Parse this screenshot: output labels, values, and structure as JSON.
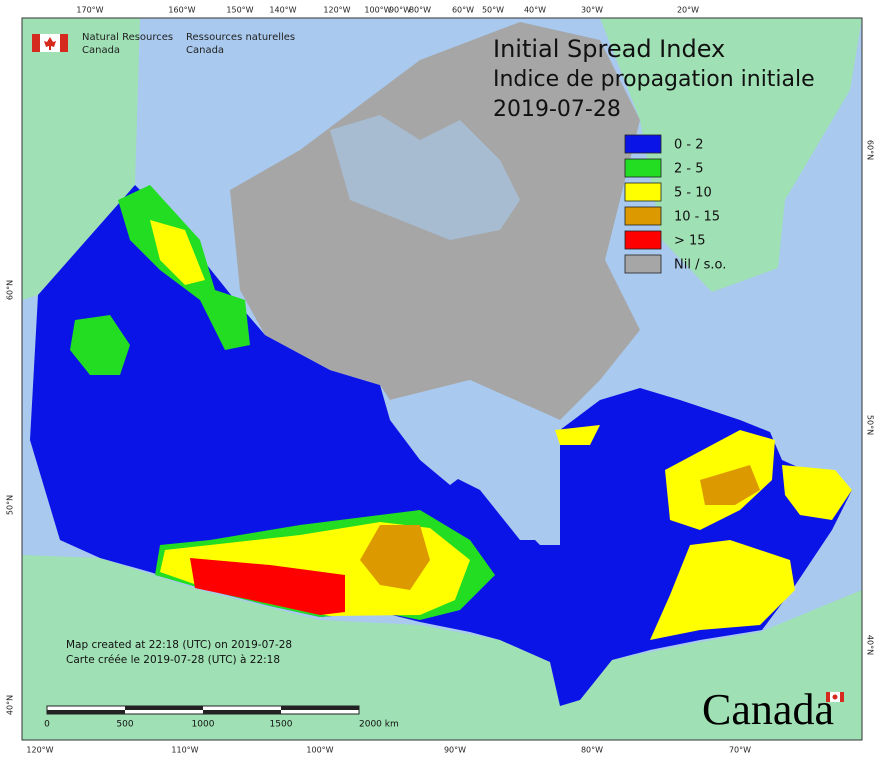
{
  "header": {
    "department_en": [
      "Natural Resources",
      "Canada"
    ],
    "department_fr": [
      "Ressources naturelles",
      "Canada"
    ]
  },
  "title": [
    "Initial Spread Index",
    "Indice de propagation initiale",
    "2019-07-28"
  ],
  "legend": [
    {
      "label": "0 - 2",
      "color": "#0a14e6"
    },
    {
      "label": "2 - 5",
      "color": "#22dd22"
    },
    {
      "label": "5 - 10",
      "color": "#ffff00"
    },
    {
      "label": "10 - 15",
      "color": "#dd9900"
    },
    {
      "label": "> 15",
      "color": "#ff0000"
    },
    {
      "label": "Nil / s.o.",
      "color": "#a6a6a6"
    }
  ],
  "graticule": {
    "top": [
      "170°W",
      "160°W",
      "150°W",
      "140°W",
      "120°W",
      "100°W",
      "90°W",
      "80°W",
      "60°W",
      "50°W",
      "40°W",
      "30°W",
      "20°W"
    ],
    "bottom": [
      "120°W",
      "110°W",
      "100°W",
      "90°W",
      "80°W",
      "70°W"
    ],
    "left": [
      "60°N",
      "50°N",
      "40°N"
    ],
    "right": [
      "60°N",
      "50°N",
      "40°N"
    ]
  },
  "notes": [
    "Map created at 22:18 (UTC) on 2019-07-28",
    "Carte créée le 2019-07-28 (UTC) à 22:18"
  ],
  "scale_bar": [
    "0",
    "500",
    "1000",
    "1500",
    "2000 km"
  ],
  "wordmark": "Canada"
}
